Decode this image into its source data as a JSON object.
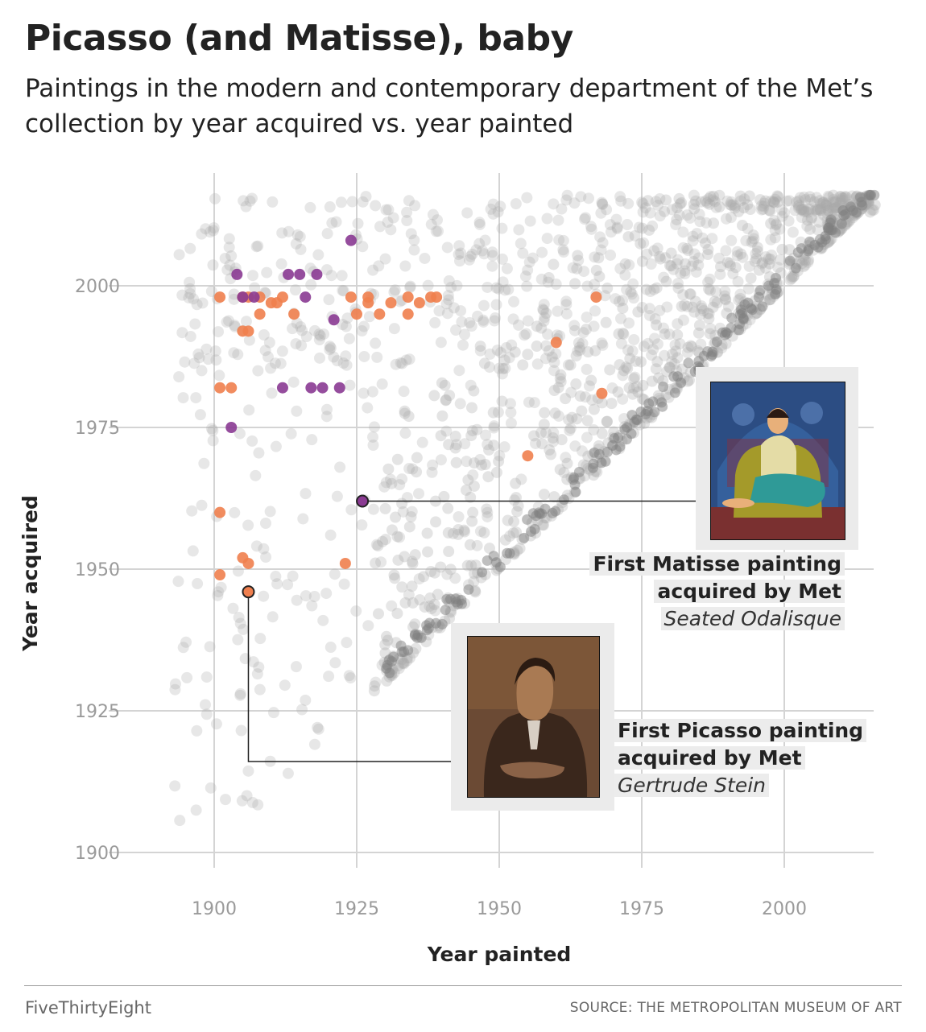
{
  "title": "Picasso (and Matisse), baby",
  "subtitle": "Paintings in the modern and contemporary department of the Met’s collection by year acquired vs. year painted",
  "footer": {
    "brand": "FiveThirtyEight",
    "source": "SOURCE: THE METROPOLITAN MUSEUM OF ART"
  },
  "colors": {
    "other": "#aaaaaa",
    "picasso": "#ef7f4e",
    "matisse": "#8a3a92",
    "text": "#222222",
    "grid": "#d4d4d4"
  },
  "annotations": {
    "matisse": {
      "head1": "First Matisse painting",
      "head2": "acquired by Met",
      "work": "Seated Odalisque"
    },
    "picasso": {
      "head1": "First Picasso painting",
      "head2": "acquired by Met",
      "work": "Gertrude Stein"
    }
  },
  "chart_data": {
    "type": "scatter",
    "title": "Picasso (and Matisse), baby",
    "xlabel": "Year painted",
    "ylabel": "Year acquired",
    "xlim": [
      1885,
      2018
    ],
    "ylim": [
      1895,
      2020
    ],
    "x_ticks": [
      1900,
      1925,
      1950,
      1975,
      2000
    ],
    "y_ticks": [
      1900,
      1925,
      1950,
      1975,
      2000
    ],
    "grid": true,
    "series": [
      {
        "color": "#ef7f4e",
        "points": [
          [
            1901,
            1998
          ],
          [
            1905,
            1998
          ],
          [
            1906,
            1998
          ],
          [
            1908,
            1998
          ],
          [
            1910,
            1997
          ],
          [
            1911,
            1997
          ],
          [
            1912,
            1998
          ],
          [
            1914,
            1995
          ],
          [
            1908,
            1995
          ],
          [
            1905,
            1992
          ],
          [
            1906,
            1992
          ],
          [
            1924,
            1998
          ],
          [
            1925,
            1995
          ],
          [
            1927,
            1997
          ],
          [
            1927,
            1998
          ],
          [
            1929,
            1995
          ],
          [
            1931,
            1997
          ],
          [
            1934,
            1995
          ],
          [
            1934,
            1998
          ],
          [
            1936,
            1997
          ],
          [
            1938,
            1998
          ],
          [
            1939,
            1998
          ],
          [
            1967,
            1998
          ],
          [
            1960,
            1990
          ],
          [
            1968,
            1981
          ],
          [
            1955,
            1970
          ],
          [
            1901,
            1982
          ],
          [
            1903,
            1982
          ],
          [
            1901,
            1960
          ],
          [
            1905,
            1952
          ],
          [
            1906,
            1951
          ],
          [
            1901,
            1949
          ],
          [
            1923,
            1951
          ],
          [
            1906,
            1946
          ]
        ]
      },
      {
        "color": "#8a3a92",
        "points": [
          [
            1924,
            2008
          ],
          [
            1904,
            2002
          ],
          [
            1913,
            2002
          ],
          [
            1915,
            2002
          ],
          [
            1918,
            2002
          ],
          [
            1905,
            1998
          ],
          [
            1907,
            1998
          ],
          [
            1916,
            1998
          ],
          [
            1921,
            1994
          ],
          [
            1912,
            1982
          ],
          [
            1917,
            1982
          ],
          [
            1919,
            1982
          ],
          [
            1922,
            1982
          ],
          [
            1903,
            1975
          ],
          [
            1926,
            1962
          ]
        ]
      }
    ],
    "highlights": [
      {
        "artist": "Matisse",
        "x": 1926,
        "y": 1962
      },
      {
        "artist": "Picasso",
        "x": 1906,
        "y": 1946
      }
    ]
  }
}
